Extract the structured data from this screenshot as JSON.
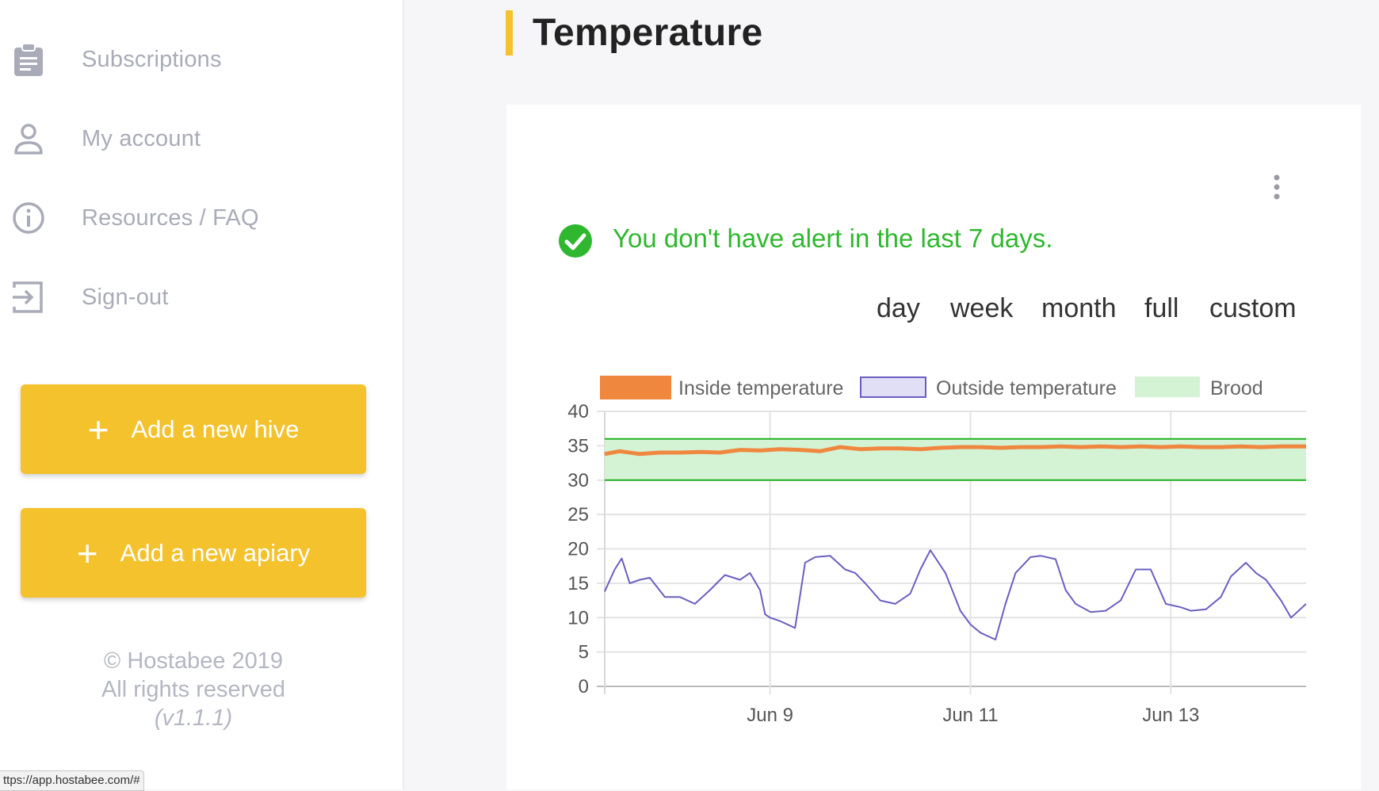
{
  "sidebar": {
    "items": [
      {
        "label": "Subscriptions",
        "icon": "clipboard-icon"
      },
      {
        "label": "My account",
        "icon": "user-icon"
      },
      {
        "label": "Resources / FAQ",
        "icon": "info-icon"
      },
      {
        "label": "Sign-out",
        "icon": "sign-out-icon"
      }
    ],
    "buttons": {
      "add_hive": "Add a new hive",
      "add_apiary": "Add a new apiary",
      "plus": "+"
    },
    "footer": {
      "copyright": "© Hostabee 2019",
      "rights": "All rights reserved",
      "version": "(v1.1.1)"
    }
  },
  "status_bar": {
    "url": "ttps://app.hostabee.com/#"
  },
  "main": {
    "title": "Temperature",
    "alert": "You don't have alert in the last 7 days.",
    "ranges": [
      "day",
      "week",
      "month",
      "full",
      "custom"
    ]
  },
  "colors": {
    "accent": "#f4c22d",
    "inside": "#f0873f",
    "outside": "#6a5fc1",
    "brood_fill": "#d4f2d4",
    "brood_line": "#22b222",
    "alert": "#2fb82f"
  },
  "chart_data": {
    "type": "line",
    "legend": [
      "Inside temperature",
      "Outside temperature",
      "Brood"
    ],
    "legend_position": "top",
    "y_ticks": [
      0,
      5,
      10,
      15,
      20,
      25,
      30,
      35,
      40
    ],
    "ylim": [
      0,
      40
    ],
    "x_tick_labels": [
      "Jun 9",
      "Jun 11",
      "Jun 13"
    ],
    "x_tick_days": [
      9,
      11,
      13
    ],
    "xlim_days": [
      7.35,
      14.35
    ],
    "grid": true,
    "brood_range": [
      30,
      36
    ],
    "series": [
      {
        "name": "Inside temperature",
        "x_days": [
          7.35,
          7.5,
          7.7,
          7.9,
          8.1,
          8.3,
          8.5,
          8.7,
          8.9,
          9.1,
          9.3,
          9.5,
          9.7,
          9.9,
          10.1,
          10.3,
          10.5,
          10.7,
          10.9,
          11.1,
          11.3,
          11.5,
          11.7,
          11.9,
          12.1,
          12.3,
          12.5,
          12.7,
          12.9,
          13.1,
          13.3,
          13.5,
          13.7,
          13.9,
          14.1,
          14.35
        ],
        "values": [
          33.8,
          34.2,
          33.8,
          34.0,
          34.0,
          34.1,
          34.0,
          34.4,
          34.3,
          34.5,
          34.4,
          34.2,
          34.8,
          34.5,
          34.6,
          34.6,
          34.5,
          34.7,
          34.8,
          34.8,
          34.7,
          34.8,
          34.8,
          34.9,
          34.8,
          34.9,
          34.8,
          34.9,
          34.8,
          34.9,
          34.8,
          34.8,
          34.9,
          34.8,
          34.9,
          34.9
        ]
      },
      {
        "name": "Outside temperature",
        "x_days": [
          7.35,
          7.45,
          7.52,
          7.6,
          7.7,
          7.8,
          7.95,
          8.1,
          8.25,
          8.4,
          8.55,
          8.7,
          8.8,
          8.9,
          8.95,
          9.0,
          9.1,
          9.25,
          9.35,
          9.45,
          9.6,
          9.75,
          9.85,
          9.95,
          10.1,
          10.25,
          10.4,
          10.5,
          10.6,
          10.75,
          10.9,
          11.0,
          11.1,
          11.25,
          11.35,
          11.45,
          11.6,
          11.7,
          11.85,
          11.95,
          12.05,
          12.2,
          12.35,
          12.5,
          12.65,
          12.8,
          12.95,
          13.1,
          13.2,
          13.35,
          13.5,
          13.6,
          13.75,
          13.85,
          13.95,
          14.1,
          14.2,
          14.35
        ],
        "values": [
          13.8,
          17.0,
          18.6,
          15.0,
          15.5,
          15.8,
          13.0,
          13.0,
          12.0,
          14.0,
          16.2,
          15.5,
          16.5,
          14.0,
          10.5,
          10.0,
          9.5,
          8.5,
          18.0,
          18.8,
          19.0,
          17.0,
          16.5,
          15.0,
          12.5,
          12.0,
          13.5,
          17.0,
          19.8,
          16.5,
          11.0,
          9.0,
          7.8,
          6.8,
          12.0,
          16.5,
          18.8,
          19.0,
          18.5,
          14.0,
          12.0,
          10.8,
          11.0,
          12.5,
          17.0,
          17.0,
          12.0,
          11.5,
          11.0,
          11.2,
          13.0,
          16.0,
          18.0,
          16.5,
          15.5,
          12.5,
          10.0,
          12.0
        ]
      }
    ]
  }
}
